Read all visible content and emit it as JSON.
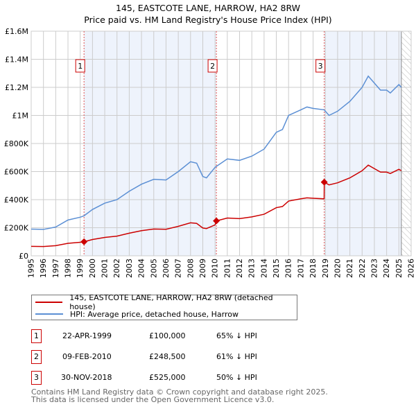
{
  "chart_data": {
    "type": "line",
    "title": "145, EASTCOTE LANE, HARROW, HA2 8RW",
    "subtitle": "Price paid vs. HM Land Registry's House Price Index (HPI)",
    "xlim": [
      1995,
      2026
    ],
    "ylim": [
      0,
      1600000
    ],
    "x_ticks": [
      "1995",
      "1996",
      "1997",
      "1998",
      "1999",
      "2000",
      "2001",
      "2002",
      "2003",
      "2004",
      "2005",
      "2006",
      "2007",
      "2008",
      "2009",
      "2010",
      "2011",
      "2012",
      "2013",
      "2014",
      "2015",
      "2016",
      "2017",
      "2018",
      "2019",
      "2020",
      "2021",
      "2022",
      "2023",
      "2024",
      "2025",
      "2026"
    ],
    "y_ticks": [
      {
        "v": 0,
        "label": "£0"
      },
      {
        "v": 200000,
        "label": "£200K"
      },
      {
        "v": 400000,
        "label": "£400K"
      },
      {
        "v": 600000,
        "label": "£600K"
      },
      {
        "v": 800000,
        "label": "£800K"
      },
      {
        "v": 1000000,
        "label": "£1M"
      },
      {
        "v": 1200000,
        "label": "£1.2M"
      },
      {
        "v": 1400000,
        "label": "£1.4M"
      },
      {
        "v": 1600000,
        "label": "£1.6M"
      }
    ],
    "series": [
      {
        "name": "145, EASTCOTE LANE, HARROW, HA2 8RW (detached house)",
        "color": "#cc0000",
        "points": [
          [
            1995,
            67000
          ],
          [
            1996,
            66000
          ],
          [
            1997,
            72000
          ],
          [
            1998,
            89000
          ],
          [
            1999,
            96000
          ],
          [
            1999.31,
            100000
          ],
          [
            2000,
            116000
          ],
          [
            2001,
            131000
          ],
          [
            2002,
            140000
          ],
          [
            2003,
            161000
          ],
          [
            2004,
            179000
          ],
          [
            2005,
            191000
          ],
          [
            2006,
            189000
          ],
          [
            2007,
            210000
          ],
          [
            2008,
            235000
          ],
          [
            2008.5,
            231000
          ],
          [
            2009,
            198000
          ],
          [
            2009.3,
            194000
          ],
          [
            2010,
            220000
          ],
          [
            2010.11,
            248500
          ],
          [
            2011,
            269000
          ],
          [
            2012,
            265000
          ],
          [
            2013,
            277000
          ],
          [
            2014,
            296000
          ],
          [
            2015,
            343000
          ],
          [
            2015.5,
            351000
          ],
          [
            2016,
            390000
          ],
          [
            2017,
            406000
          ],
          [
            2017.5,
            413000
          ],
          [
            2018,
            410000
          ],
          [
            2018.9,
            406000
          ],
          [
            2018.91,
            525000
          ],
          [
            2019.3,
            505000
          ],
          [
            2020,
            520000
          ],
          [
            2021,
            555000
          ],
          [
            2022,
            606000
          ],
          [
            2022.5,
            646000
          ],
          [
            2023,
            621000
          ],
          [
            2023.5,
            596000
          ],
          [
            2024,
            596000
          ],
          [
            2024.3,
            586000
          ],
          [
            2025,
            616000
          ],
          [
            2025.2,
            606000
          ]
        ]
      },
      {
        "name": "HPI: Average price, detached house, Harrow",
        "color": "#5b8fd4",
        "points": [
          [
            1995,
            190000
          ],
          [
            1996,
            188000
          ],
          [
            1997,
            205000
          ],
          [
            1998,
            255000
          ],
          [
            1999,
            275000
          ],
          [
            1999.31,
            285000
          ],
          [
            2000,
            330000
          ],
          [
            2001,
            375000
          ],
          [
            2002,
            400000
          ],
          [
            2003,
            460000
          ],
          [
            2004,
            510000
          ],
          [
            2005,
            545000
          ],
          [
            2006,
            540000
          ],
          [
            2007,
            600000
          ],
          [
            2008,
            670000
          ],
          [
            2008.5,
            660000
          ],
          [
            2009,
            565000
          ],
          [
            2009.3,
            555000
          ],
          [
            2010,
            630000
          ],
          [
            2010.11,
            637000
          ],
          [
            2011,
            690000
          ],
          [
            2012,
            680000
          ],
          [
            2013,
            710000
          ],
          [
            2014,
            760000
          ],
          [
            2015,
            880000
          ],
          [
            2015.5,
            900000
          ],
          [
            2016,
            1000000
          ],
          [
            2017,
            1040000
          ],
          [
            2017.5,
            1060000
          ],
          [
            2018,
            1050000
          ],
          [
            2018.9,
            1040000
          ],
          [
            2019.3,
            1000000
          ],
          [
            2020,
            1030000
          ],
          [
            2021,
            1100000
          ],
          [
            2022,
            1200000
          ],
          [
            2022.5,
            1280000
          ],
          [
            2023,
            1230000
          ],
          [
            2023.5,
            1180000
          ],
          [
            2024,
            1180000
          ],
          [
            2024.3,
            1160000
          ],
          [
            2025,
            1220000
          ],
          [
            2025.2,
            1200000
          ]
        ]
      }
    ],
    "sales": [
      {
        "id": "1",
        "x": 1999.31,
        "price": 100000
      },
      {
        "id": "2",
        "x": 2010.11,
        "price": 248500
      },
      {
        "id": "3",
        "x": 2018.91,
        "price": 525000
      }
    ],
    "forecast_start": 2025.2,
    "grid": true
  },
  "legend": {
    "property": "145, EASTCOTE LANE, HARROW, HA2 8RW (detached house)",
    "hpi": "HPI: Average price, detached house, Harrow"
  },
  "transactions": [
    {
      "id": "1",
      "date": "22-APR-1999",
      "price": "£100,000",
      "hpi": "65% ↓ HPI"
    },
    {
      "id": "2",
      "date": "09-FEB-2010",
      "price": "£248,500",
      "hpi": "61% ↓ HPI"
    },
    {
      "id": "3",
      "date": "30-NOV-2018",
      "price": "£525,000",
      "hpi": "50% ↓ HPI"
    }
  ],
  "footer": {
    "line1": "Contains HM Land Registry data © Crown copyright and database right 2025.",
    "line2": "This data is licensed under the Open Government Licence v3.0."
  }
}
